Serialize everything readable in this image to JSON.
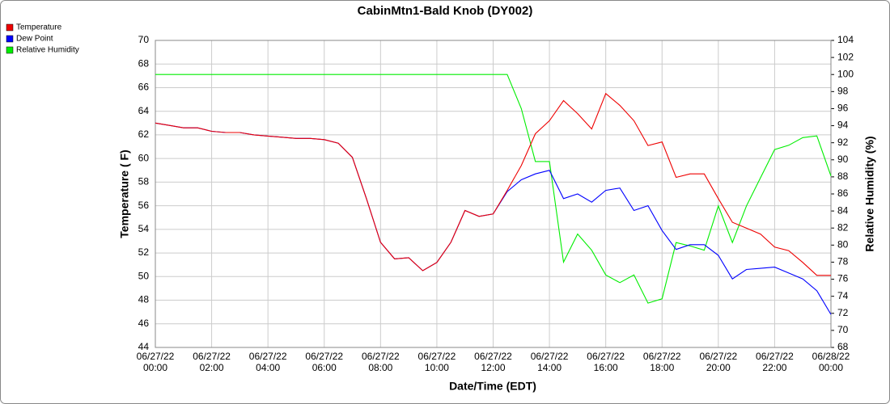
{
  "chart_data": {
    "type": "line",
    "title": "CabinMtn1-Bald Knob (DY002)",
    "x_label": "Date/Time (EDT)",
    "y_label": "Temperature ( F)",
    "y2_label": "Relative Humidity (%)",
    "x": [
      "06/27/22 00:00",
      "06/27/22 00:30",
      "06/27/22 01:00",
      "06/27/22 01:30",
      "06/27/22 02:00",
      "06/27/22 02:30",
      "06/27/22 03:00",
      "06/27/22 03:30",
      "06/27/22 04:00",
      "06/27/22 04:30",
      "06/27/22 05:00",
      "06/27/22 05:30",
      "06/27/22 06:00",
      "06/27/22 06:30",
      "06/27/22 07:00",
      "06/27/22 07:30",
      "06/27/22 08:00",
      "06/27/22 08:30",
      "06/27/22 09:00",
      "06/27/22 09:30",
      "06/27/22 10:00",
      "06/27/22 10:30",
      "06/27/22 11:00",
      "06/27/22 11:30",
      "06/27/22 12:00",
      "06/27/22 12:30",
      "06/27/22 13:00",
      "06/27/22 13:30",
      "06/27/22 14:00",
      "06/27/22 14:30",
      "06/27/22 15:00",
      "06/27/22 15:30",
      "06/27/22 16:00",
      "06/27/22 16:30",
      "06/27/22 17:00",
      "06/27/22 17:30",
      "06/27/22 18:00",
      "06/27/22 18:30",
      "06/27/22 19:00",
      "06/27/22 19:30",
      "06/27/22 20:00",
      "06/27/22 20:30",
      "06/27/22 21:00",
      "06/27/22 21:30",
      "06/27/22 22:00",
      "06/27/22 22:30",
      "06/27/22 23:00",
      "06/27/22 23:30",
      "06/28/22 00:00"
    ],
    "series": [
      {
        "name": "Dew Point",
        "color": "#0000ff",
        "values": [
          63.0,
          62.8,
          62.6,
          62.6,
          62.3,
          62.2,
          62.2,
          62.0,
          61.9,
          61.8,
          61.7,
          61.7,
          61.6,
          61.3,
          60.1,
          56.6,
          52.9,
          51.5,
          51.6,
          50.5,
          51.2,
          52.9,
          55.6,
          55.1,
          55.3,
          57.2,
          58.2,
          58.7,
          59.0,
          56.6,
          57.0,
          56.3,
          57.3,
          57.5,
          55.6,
          56.0,
          53.9,
          52.3,
          52.7,
          52.7,
          51.8,
          49.8,
          50.6,
          50.7,
          50.8,
          50.3,
          49.8,
          48.8,
          46.8
        ]
      },
      {
        "name": "Temperature",
        "color": "#ee0000",
        "values": [
          63.0,
          62.8,
          62.6,
          62.6,
          62.3,
          62.2,
          62.2,
          62.0,
          61.9,
          61.8,
          61.7,
          61.7,
          61.6,
          61.3,
          60.1,
          56.6,
          52.9,
          51.5,
          51.6,
          50.5,
          51.2,
          52.9,
          55.6,
          55.1,
          55.3,
          57.3,
          59.4,
          62.1,
          63.2,
          64.9,
          63.8,
          62.5,
          65.5,
          64.5,
          63.2,
          61.1,
          61.4,
          58.4,
          58.7,
          58.7,
          56.6,
          54.6,
          54.1,
          53.6,
          52.5,
          52.2,
          51.2,
          50.1,
          50.1
        ]
      },
      {
        "name": "Relative Humidity",
        "color": "#00ee00",
        "axis": "y2",
        "values": [
          100,
          100,
          100,
          100,
          100,
          100,
          100,
          100,
          100,
          100,
          100,
          100,
          100,
          100,
          100,
          100,
          100,
          100,
          100,
          100,
          100,
          100,
          100,
          100,
          100,
          100,
          96.0,
          89.8,
          89.8,
          78.0,
          81.3,
          79.4,
          76.5,
          75.6,
          76.5,
          73.2,
          73.7,
          80.3,
          79.9,
          79.4,
          84.6,
          80.3,
          84.6,
          87.9,
          91.2,
          91.7,
          92.6,
          92.8,
          88.1
        ]
      }
    ],
    "legend_order": [
      "Temperature",
      "Dew Point",
      "Relative Humidity"
    ],
    "xlim": [
      "06/27/22 00:00",
      "06/28/22 00:00"
    ],
    "xticks": [
      "06/27/22 00:00",
      "06/27/22 02:00",
      "06/27/22 04:00",
      "06/27/22 06:00",
      "06/27/22 08:00",
      "06/27/22 10:00",
      "06/27/22 12:00",
      "06/27/22 14:00",
      "06/27/22 16:00",
      "06/27/22 18:00",
      "06/27/22 20:00",
      "06/27/22 22:00",
      "06/28/22 00:00"
    ],
    "ylim": [
      44,
      70
    ],
    "yticks": [
      44,
      46,
      48,
      50,
      52,
      54,
      56,
      58,
      60,
      62,
      64,
      66,
      68,
      70
    ],
    "y2lim": [
      68,
      104
    ],
    "y2ticks": [
      68,
      70,
      72,
      74,
      76,
      78,
      80,
      82,
      84,
      86,
      88,
      90,
      92,
      94,
      96,
      98,
      100,
      102,
      104
    ],
    "grid": true,
    "legend": "upper left"
  }
}
